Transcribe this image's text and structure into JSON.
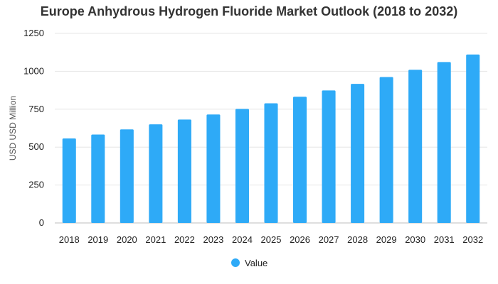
{
  "chart_data": {
    "type": "bar",
    "title": "Europe Anhydrous Hydrogen Fluoride Market Outlook (2018 to 2032)",
    "xlabel": "",
    "ylabel": "USD USD Million",
    "ylim": [
      0,
      1250
    ],
    "yticks": [
      0,
      250,
      500,
      750,
      1000,
      1250
    ],
    "categories": [
      "2018",
      "2019",
      "2020",
      "2021",
      "2022",
      "2023",
      "2024",
      "2025",
      "2026",
      "2027",
      "2028",
      "2029",
      "2030",
      "2031",
      "2032"
    ],
    "series": [
      {
        "name": "Value",
        "values": [
          557,
          583,
          617,
          650,
          682,
          715,
          752,
          789,
          832,
          874,
          917,
          962,
          1010,
          1061,
          1111
        ],
        "color": "#2eaaf7"
      }
    ],
    "grid": true,
    "legend": "bottom-center"
  }
}
